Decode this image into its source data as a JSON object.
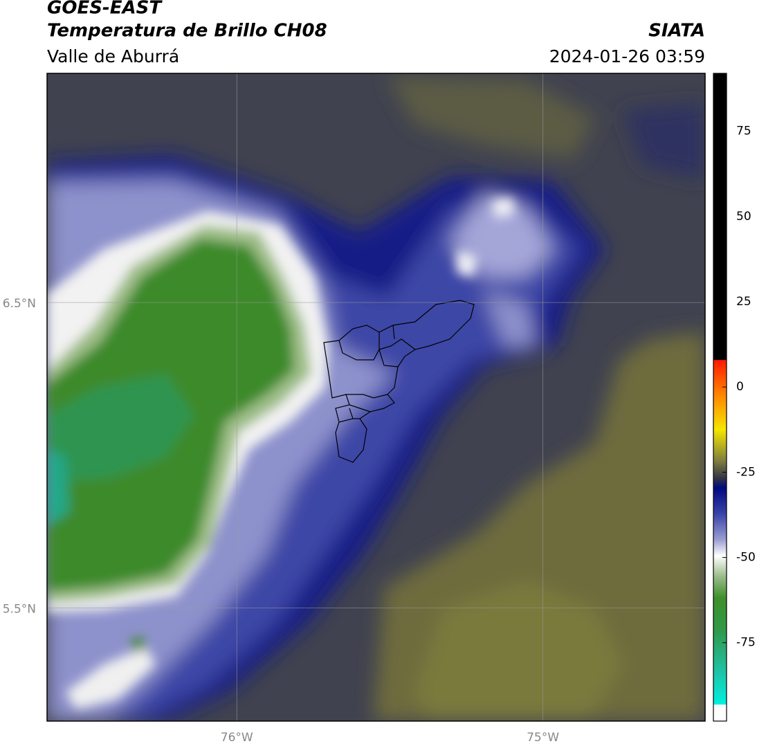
{
  "header": {
    "title": "GOES-EAST",
    "subtitle": "Temperatura de Brillo CH08",
    "source": "SIATA",
    "region": "Valle de Aburrá",
    "datetime": "2024-01-26 03:59"
  },
  "map": {
    "xlim": [
      -76.62,
      -74.47
    ],
    "ylim": [
      5.13,
      7.25
    ],
    "xticks": [
      {
        "value": -76,
        "label": "76°W"
      },
      {
        "value": -75,
        "label": "75°W"
      }
    ],
    "yticks": [
      {
        "value": 5.5,
        "label": "5.5°N"
      },
      {
        "value": 6.5,
        "label": "6.5°N"
      }
    ],
    "grid": true
  },
  "colorbar": {
    "lim": [
      -98,
      92
    ],
    "ticks": [
      -75,
      -50,
      -25,
      0,
      25,
      50,
      75
    ]
  }
}
